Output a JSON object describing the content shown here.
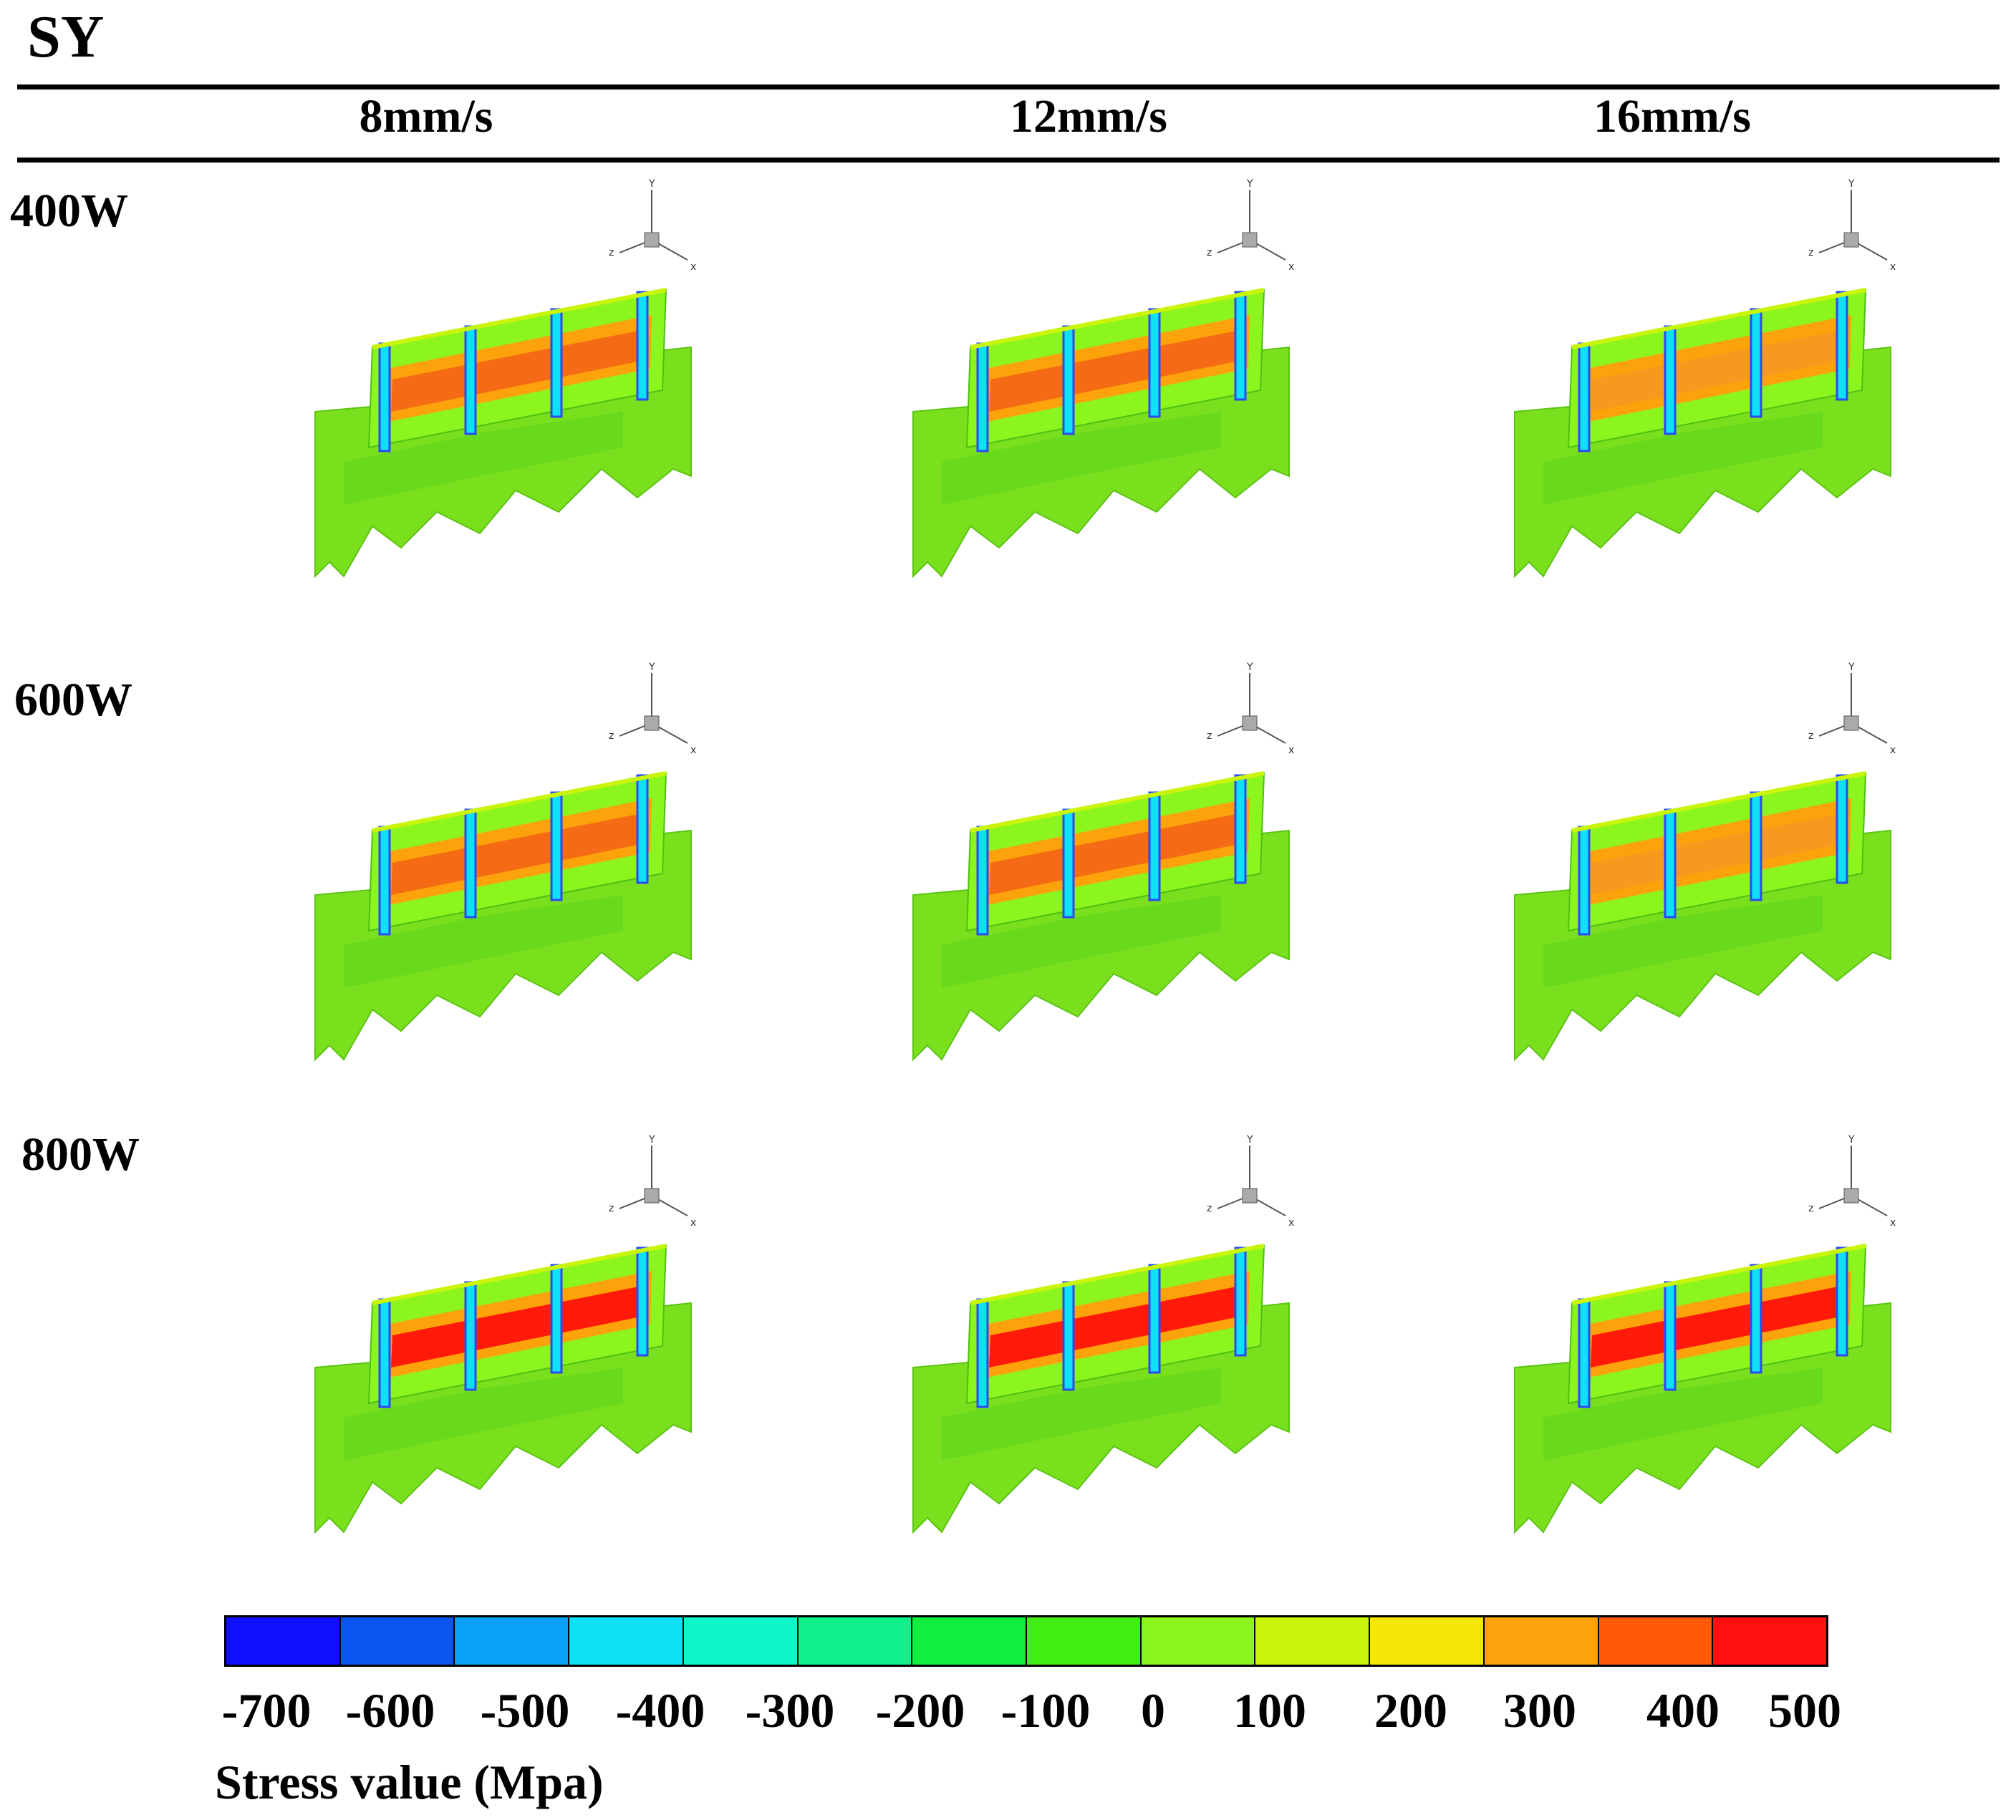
{
  "title": "SY",
  "columns": [
    "8mm/s",
    "12mm/s",
    "16mm/s"
  ],
  "rows": [
    "400W",
    "600W",
    "800W"
  ],
  "axes": {
    "x": "x",
    "y": "Y",
    "z": "z"
  },
  "stress_levels": [
    [
      "med",
      "med",
      "low"
    ],
    [
      "med",
      "med",
      "low"
    ],
    [
      "high",
      "high",
      "high"
    ]
  ],
  "colorbar": {
    "colors": [
      "#1010ff",
      "#0a55f0",
      "#0aa0f5",
      "#10e0f5",
      "#10f5c8",
      "#10f08a",
      "#10ee40",
      "#40ee14",
      "#8cf51e",
      "#c8f50a",
      "#f5e60a",
      "#fca20a",
      "#ff5a0a",
      "#ff1010"
    ],
    "ticks": [
      "-700",
      "-600",
      "-500",
      "-400",
      "-300",
      "-200",
      "-100",
      "0",
      "100",
      "200",
      "300",
      "400",
      "500"
    ],
    "label": "Stress value (Mpa)"
  },
  "legend_colors": {
    "low": "#f59a1e",
    "med": "#f56a14",
    "high": "#ff1a0a",
    "base": "#7ae01e",
    "edge": "#2a4af5"
  }
}
